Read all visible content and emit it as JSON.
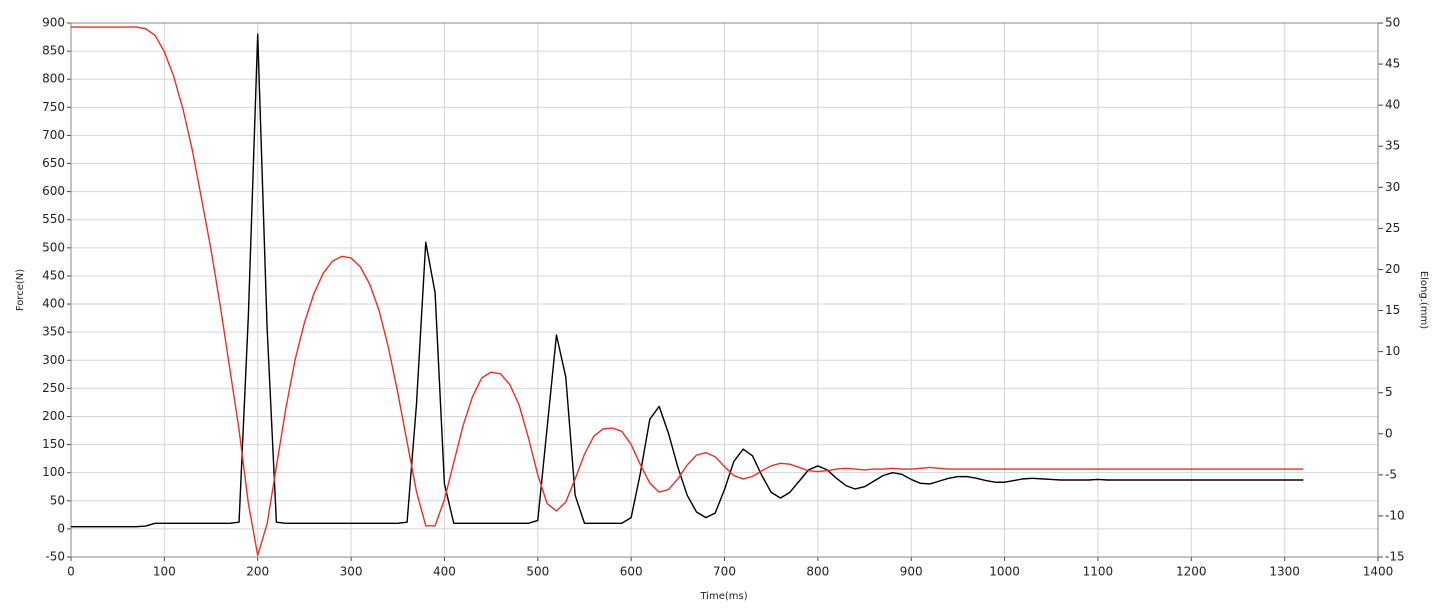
{
  "chart_data": {
    "type": "line",
    "xlabel": "Time(ms)",
    "ylabel": "Force(N)",
    "y2label": "Elong.(mm)",
    "x": [
      0,
      10,
      20,
      30,
      40,
      50,
      60,
      70,
      80,
      90,
      100,
      110,
      120,
      130,
      140,
      150,
      160,
      170,
      180,
      190,
      200,
      210,
      220,
      230,
      240,
      250,
      260,
      270,
      280,
      290,
      300,
      310,
      320,
      330,
      340,
      350,
      360,
      370,
      380,
      390,
      400,
      410,
      420,
      430,
      440,
      450,
      460,
      470,
      480,
      490,
      500,
      510,
      520,
      530,
      540,
      550,
      560,
      570,
      580,
      590,
      600,
      610,
      620,
      630,
      640,
      650,
      660,
      670,
      680,
      690,
      700,
      710,
      720,
      730,
      740,
      750,
      760,
      770,
      780,
      790,
      800,
      810,
      820,
      830,
      840,
      850,
      860,
      870,
      880,
      890,
      900,
      910,
      920,
      930,
      940,
      950,
      960,
      970,
      980,
      990,
      1000,
      1010,
      1020,
      1030,
      1040,
      1050,
      1060,
      1070,
      1080,
      1090,
      1100,
      1110,
      1120,
      1130,
      1140,
      1150,
      1160,
      1170,
      1180,
      1190,
      1200,
      1210,
      1220,
      1230,
      1240,
      1250,
      1260,
      1270,
      1280,
      1290,
      1300,
      1310,
      1320
    ],
    "series": [
      {
        "color": "#000000",
        "values": [
          4,
          4,
          4,
          4,
          4,
          4,
          4,
          4,
          5,
          10,
          10,
          10,
          10,
          10,
          10,
          10,
          10,
          10,
          12,
          380,
          880,
          360,
          12,
          10,
          10,
          10,
          10,
          10,
          10,
          10,
          10,
          10,
          10,
          10,
          10,
          10,
          12,
          220,
          510,
          420,
          80,
          10,
          10,
          10,
          10,
          10,
          10,
          10,
          10,
          10,
          15,
          180,
          345,
          270,
          60,
          10,
          10,
          10,
          10,
          10,
          20,
          100,
          195,
          218,
          170,
          110,
          60,
          30,
          20,
          28,
          70,
          120,
          142,
          130,
          95,
          65,
          55,
          65,
          85,
          105,
          112,
          105,
          90,
          77,
          71,
          75,
          85,
          95,
          100,
          97,
          88,
          81,
          80,
          85,
          90,
          93,
          93,
          90,
          86,
          83,
          83,
          86,
          89,
          90,
          89,
          88,
          87,
          87,
          87,
          87,
          88,
          87,
          87,
          87,
          87,
          87,
          87,
          87,
          87,
          87,
          87,
          87,
          87,
          87,
          87,
          87,
          87,
          87,
          87,
          87,
          87,
          87,
          87
        ]
      },
      {
        "color": "#e8302a",
        "axis": "y2",
        "values": [
          49.5,
          49.5,
          49.5,
          49.5,
          49.5,
          49.5,
          49.5,
          49.5,
          49.3,
          48.5,
          46.5,
          43.5,
          39.5,
          34.5,
          28.5,
          22.4,
          15.5,
          8,
          0.5,
          -8.5,
          -14.8,
          -11,
          -4,
          3,
          9,
          13.5,
          17,
          19.5,
          21,
          21.6,
          21.4,
          20.3,
          18.2,
          15,
          10.5,
          5,
          -1,
          -7,
          -11.2,
          -11.2,
          -8,
          -3.5,
          1,
          4.5,
          6.8,
          7.5,
          7.3,
          6,
          3.5,
          -0.5,
          -5,
          -8.5,
          -9.4,
          -8.3,
          -5.5,
          -2.5,
          -0.3,
          0.6,
          0.7,
          0.3,
          -1.3,
          -3.8,
          -6,
          -7.1,
          -6.8,
          -5.5,
          -3.8,
          -2.6,
          -2.3,
          -2.8,
          -4,
          -5.1,
          -5.5,
          -5.2,
          -4.5,
          -3.9,
          -3.6,
          -3.7,
          -4.1,
          -4.5,
          -4.6,
          -4.5,
          -4.3,
          -4.2,
          -4.3,
          -4.4,
          -4.3,
          -4.3,
          -4.2,
          -4.3,
          -4.3,
          -4.2,
          -4.1,
          -4.2,
          -4.3,
          -4.3,
          -4.3,
          -4.3,
          -4.3,
          -4.3,
          -4.3,
          -4.3,
          -4.3,
          -4.3,
          -4.3,
          -4.3,
          -4.3,
          -4.3,
          -4.3,
          -4.3,
          -4.3,
          -4.3,
          -4.3,
          -4.3,
          -4.3,
          -4.3,
          -4.3,
          -4.3,
          -4.3,
          -4.3,
          -4.3,
          -4.3,
          -4.3,
          -4.3,
          -4.3,
          -4.3,
          -4.3,
          -4.3,
          -4.3,
          -4.3,
          -4.3,
          -4.3,
          -4.3
        ]
      }
    ],
    "xlim": [
      0,
      1400
    ],
    "xticks": [
      0,
      100,
      200,
      300,
      400,
      500,
      600,
      700,
      800,
      900,
      1000,
      1100,
      1200,
      1300,
      1400
    ],
    "ylim": [
      -50,
      900
    ],
    "yticks": [
      -50,
      0,
      50,
      100,
      150,
      200,
      250,
      300,
      350,
      400,
      450,
      500,
      550,
      600,
      650,
      700,
      750,
      800,
      850,
      900
    ],
    "y2lim": [
      -15,
      50
    ],
    "y2ticks": [
      -15,
      -10,
      -5,
      0,
      5,
      10,
      15,
      20,
      25,
      30,
      35,
      40,
      45,
      50
    ],
    "grid": true
  }
}
